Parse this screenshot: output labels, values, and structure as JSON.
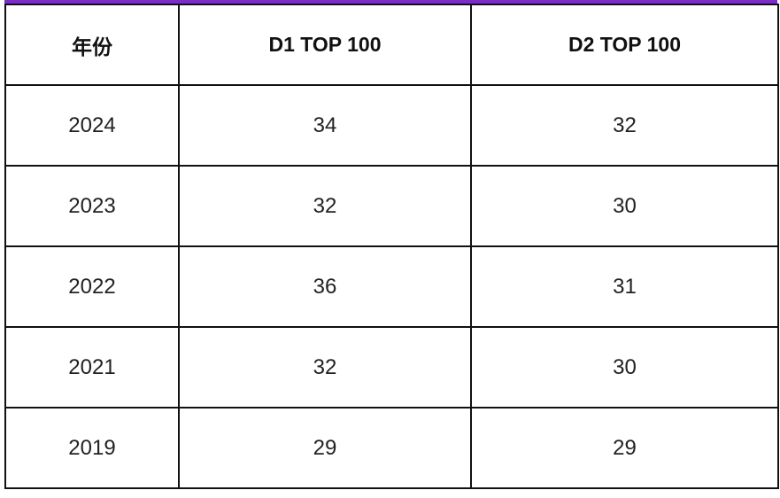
{
  "table": {
    "headers": [
      "年份",
      "D1 TOP 100",
      "D2 TOP 100"
    ],
    "rows": [
      [
        "2024",
        "34",
        "32"
      ],
      [
        "2023",
        "32",
        "30"
      ],
      [
        "2022",
        "36",
        "31"
      ],
      [
        "2021",
        "32",
        "30"
      ],
      [
        "2019",
        "29",
        "29"
      ]
    ]
  },
  "colors": {
    "accent": "#7a2fc4",
    "border": "#111111"
  }
}
